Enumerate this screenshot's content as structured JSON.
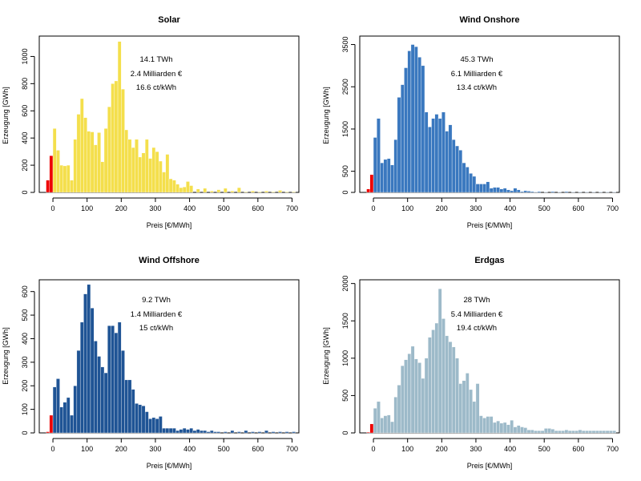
{
  "chart_data": [
    {
      "type": "bar",
      "title": "Solar",
      "xlabel": "Preis [€/MWh]",
      "ylabel": "Erzeugung [GWh]",
      "xlim": [
        -40,
        720
      ],
      "ylim": [
        0,
        1150
      ],
      "xticks": [
        0,
        100,
        200,
        300,
        400,
        500,
        600,
        700
      ],
      "yticks": [
        0,
        200,
        400,
        600,
        800,
        1000
      ],
      "color": "#f4df4c",
      "negative_color": "#ee0000",
      "bin_width": 10,
      "bins": [
        -20,
        -10,
        0,
        10,
        20,
        30,
        40,
        50,
        60,
        70,
        80,
        90,
        100,
        110,
        120,
        130,
        140,
        150,
        160,
        170,
        180,
        190,
        200,
        210,
        220,
        230,
        240,
        250,
        260,
        270,
        280,
        290,
        300,
        310,
        320,
        330,
        340,
        350,
        360,
        370,
        380,
        390,
        400,
        420,
        440,
        460,
        480,
        500,
        520,
        540,
        560,
        580,
        600,
        620,
        640,
        660,
        680,
        700
      ],
      "values": [
        90,
        270,
        470,
        310,
        200,
        195,
        200,
        90,
        390,
        575,
        690,
        550,
        450,
        445,
        350,
        440,
        225,
        470,
        630,
        800,
        820,
        1110,
        760,
        460,
        390,
        330,
        390,
        260,
        290,
        390,
        250,
        330,
        300,
        230,
        150,
        280,
        100,
        90,
        60,
        35,
        40,
        80,
        50,
        25,
        30,
        10,
        20,
        30,
        10,
        35,
        5,
        10,
        5,
        10,
        5,
        15,
        5,
        5
      ],
      "annotations": [
        "14.1 TWh",
        "2.4 Milliarden €",
        "16.6 ct/kWh"
      ]
    },
    {
      "type": "bar",
      "title": "Wind Onshore",
      "xlabel": "Preis [€/MWh]",
      "ylabel": "Erzeugung [GWh]",
      "xlim": [
        -40,
        720
      ],
      "ylim": [
        0,
        3700
      ],
      "xticks": [
        0,
        100,
        200,
        300,
        400,
        500,
        600,
        700
      ],
      "yticks": [
        0,
        500,
        1500,
        2500,
        3500
      ],
      "color": "#3a78bf",
      "negative_color": "#ee0000",
      "bin_width": 10,
      "bins": [
        -20,
        -10,
        0,
        10,
        20,
        30,
        40,
        50,
        60,
        70,
        80,
        90,
        100,
        110,
        120,
        130,
        140,
        150,
        160,
        170,
        180,
        190,
        200,
        210,
        220,
        230,
        240,
        250,
        260,
        270,
        280,
        290,
        300,
        310,
        320,
        330,
        340,
        350,
        360,
        370,
        380,
        390,
        400,
        410,
        420,
        430,
        440,
        450,
        460,
        470,
        480,
        500,
        520,
        540,
        560,
        580,
        600,
        620,
        640,
        660,
        680,
        700
      ],
      "values": [
        80,
        420,
        1300,
        1750,
        700,
        780,
        800,
        650,
        1250,
        2250,
        2550,
        2950,
        3350,
        3500,
        3450,
        3200,
        3000,
        1900,
        1550,
        1750,
        1850,
        1750,
        1900,
        1450,
        1600,
        1250,
        1100,
        1000,
        700,
        600,
        450,
        380,
        200,
        200,
        200,
        250,
        100,
        120,
        120,
        80,
        100,
        60,
        40,
        100,
        60,
        20,
        40,
        30,
        20,
        10,
        20,
        10,
        20,
        10,
        20,
        10,
        10,
        10,
        10,
        10,
        10,
        10
      ],
      "annotations": [
        "45.3 TWh",
        "6.1 Milliarden €",
        "13.4 ct/kWh"
      ]
    },
    {
      "type": "bar",
      "title": "Wind Offshore",
      "xlabel": "Preis [€/MWh]",
      "ylabel": "Erzeugung [GWh]",
      "xlim": [
        -40,
        720
      ],
      "ylim": [
        0,
        650
      ],
      "xticks": [
        0,
        100,
        200,
        300,
        400,
        500,
        600,
        700
      ],
      "yticks": [
        0,
        100,
        200,
        300,
        400,
        500,
        600
      ],
      "color": "#1f5495",
      "negative_color": "#ee0000",
      "bin_width": 10,
      "bins": [
        -20,
        -10,
        0,
        10,
        20,
        30,
        40,
        50,
        60,
        70,
        80,
        90,
        100,
        110,
        120,
        130,
        140,
        150,
        160,
        170,
        180,
        190,
        200,
        210,
        220,
        230,
        240,
        250,
        260,
        270,
        280,
        290,
        300,
        310,
        320,
        330,
        340,
        350,
        360,
        370,
        380,
        390,
        400,
        410,
        420,
        430,
        440,
        450,
        460,
        470,
        480,
        500,
        520,
        540,
        560,
        580,
        600,
        620,
        640,
        660,
        680,
        700
      ],
      "values": [
        5,
        75,
        195,
        230,
        110,
        130,
        150,
        75,
        200,
        350,
        470,
        590,
        630,
        530,
        390,
        325,
        280,
        255,
        455,
        455,
        425,
        470,
        350,
        225,
        225,
        185,
        125,
        120,
        115,
        90,
        60,
        65,
        60,
        70,
        20,
        20,
        20,
        20,
        10,
        15,
        20,
        15,
        20,
        10,
        15,
        10,
        10,
        5,
        10,
        5,
        5,
        5,
        10,
        5,
        10,
        5,
        5,
        10,
        5,
        5,
        5,
        5
      ],
      "annotations": [
        "9.2 TWh",
        "1.4 Milliarden €",
        "15 ct/kWh"
      ]
    },
    {
      "type": "bar",
      "title": "Erdgas",
      "xlabel": "Preis [€/MWh]",
      "ylabel": "Erzeugung [GWh]",
      "xlim": [
        -40,
        720
      ],
      "ylim": [
        0,
        2050
      ],
      "xticks": [
        0,
        100,
        200,
        300,
        400,
        500,
        600,
        700
      ],
      "yticks": [
        0,
        500,
        1000,
        1500,
        2000
      ],
      "color": "#9dbac9",
      "negative_color": "#ee0000",
      "bin_width": 10,
      "bins": [
        -20,
        -10,
        0,
        10,
        20,
        30,
        40,
        50,
        60,
        70,
        80,
        90,
        100,
        110,
        120,
        130,
        140,
        150,
        160,
        170,
        180,
        190,
        200,
        210,
        220,
        230,
        240,
        250,
        260,
        270,
        280,
        290,
        300,
        310,
        320,
        330,
        340,
        350,
        360,
        370,
        380,
        390,
        400,
        410,
        420,
        430,
        440,
        450,
        460,
        470,
        480,
        490,
        500,
        510,
        520,
        530,
        540,
        550,
        560,
        570,
        580,
        590,
        600,
        610,
        620,
        630,
        640,
        650,
        660,
        670,
        680,
        690,
        700
      ],
      "values": [
        10,
        120,
        330,
        420,
        200,
        230,
        240,
        150,
        480,
        640,
        900,
        980,
        1060,
        1160,
        990,
        940,
        730,
        1000,
        1280,
        1380,
        1470,
        1930,
        1530,
        1300,
        1220,
        1150,
        1000,
        660,
        700,
        800,
        580,
        420,
        660,
        230,
        200,
        220,
        220,
        140,
        160,
        130,
        140,
        110,
        170,
        80,
        100,
        80,
        70,
        40,
        40,
        30,
        30,
        30,
        60,
        60,
        50,
        30,
        30,
        30,
        40,
        30,
        30,
        30,
        40,
        30,
        30,
        30,
        30,
        30,
        30,
        30,
        30,
        30,
        30
      ],
      "annotations": [
        "28 TWh",
        "5.4 Milliarden €",
        "19.4 ct/kWh"
      ]
    }
  ]
}
